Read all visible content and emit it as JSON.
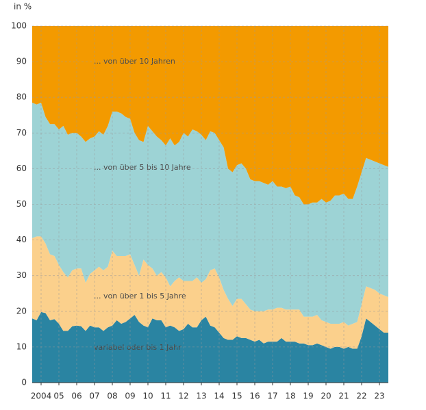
{
  "chart_data": {
    "type": "stacked_area",
    "ylabel": "in %",
    "x": [
      2004,
      2004.25,
      2004.5,
      2004.75,
      2005,
      2005.25,
      2005.5,
      2005.75,
      2006,
      2006.25,
      2006.5,
      2006.75,
      2007,
      2007.25,
      2007.5,
      2007.75,
      2008,
      2008.25,
      2008.5,
      2008.75,
      2009,
      2009.25,
      2009.5,
      2009.75,
      2010,
      2010.25,
      2010.5,
      2010.75,
      2011,
      2011.25,
      2011.5,
      2011.75,
      2012,
      2012.25,
      2012.5,
      2012.75,
      2013,
      2013.25,
      2013.5,
      2013.75,
      2014,
      2014.25,
      2014.5,
      2014.75,
      2015,
      2015.25,
      2015.5,
      2015.75,
      2016,
      2016.25,
      2016.5,
      2016.75,
      2017,
      2017.25,
      2017.5,
      2017.75,
      2018,
      2018.25,
      2018.5,
      2018.75,
      2019,
      2019.25,
      2019.5,
      2019.75,
      2020,
      2020.25,
      2020.5,
      2020.75,
      2021,
      2021.25,
      2021.5,
      2021.75,
      2022,
      2022.25,
      2022.5,
      2022.75,
      2023,
      2023.25,
      2023.5,
      2023.75,
      2024
    ],
    "series": [
      {
        "name": "variabel oder bis 1 Jahr",
        "color": "#2a84a2",
        "values": [
          18,
          17.5,
          19.8,
          19.5,
          17.5,
          17.8,
          16.5,
          14.5,
          14.5,
          15.8,
          16,
          15.8,
          14.5,
          16,
          15.5,
          15.5,
          14.5,
          15.5,
          16,
          17.5,
          16.5,
          17,
          18,
          19,
          17,
          16,
          15.5,
          18,
          17.5,
          17.5,
          15.5,
          16,
          15.5,
          14.5,
          15,
          16.5,
          15.5,
          15.5,
          17.5,
          18.5,
          16,
          15.5,
          14,
          12.5,
          12,
          12,
          13,
          12.5,
          12.5,
          12,
          11.5,
          12,
          11,
          11.5,
          11.5,
          11.5,
          12.5,
          11.5,
          11.5,
          11.5,
          11,
          11,
          10.5,
          10.5,
          11,
          10.5,
          10,
          9.5,
          10,
          10,
          9.5,
          10,
          9.5,
          9.5,
          13,
          18,
          17,
          16,
          15,
          14,
          14
        ]
      },
      {
        "name": "... von über 1 bis 5 Jahre",
        "color": "#fbd08c",
        "values": [
          22.5,
          23.5,
          21.2,
          19.5,
          18.5,
          17.7,
          16.5,
          16.5,
          15,
          15.7,
          16,
          16.2,
          13.5,
          14.5,
          16,
          17,
          17,
          17,
          21,
          18,
          19,
          18.5,
          18,
          14,
          13,
          18.5,
          17.5,
          14,
          12.5,
          13.5,
          14,
          11,
          13,
          15,
          13.5,
          12,
          13,
          14,
          10.5,
          10.5,
          15.5,
          16.5,
          15.5,
          13.5,
          11.5,
          9.5,
          10.5,
          11,
          9.5,
          8.5,
          8.5,
          8,
          9,
          9,
          9,
          9.5,
          8.5,
          9,
          9,
          9,
          9.5,
          7.5,
          8,
          8,
          8,
          7,
          7,
          7,
          6.5,
          6.5,
          7.5,
          6,
          7,
          7.5,
          9,
          9,
          9.5,
          10,
          10,
          10.5,
          10
        ]
      },
      {
        "name": "... von über 5 bis 10 Jahre",
        "color": "#9dd3d5",
        "values": [
          38,
          37,
          37.5,
          35.5,
          36.5,
          37,
          38,
          41,
          40,
          38.5,
          38,
          37,
          39.5,
          38,
          37.5,
          38,
          38,
          39.5,
          39,
          40.5,
          40,
          39,
          38,
          37,
          38,
          33,
          39,
          38.5,
          39,
          37,
          37,
          41.5,
          38,
          38,
          41.5,
          40.5,
          42.5,
          41,
          41.5,
          39,
          39,
          38,
          38.5,
          40,
          36.5,
          37.5,
          37.5,
          38,
          38,
          36.5,
          36.5,
          36.5,
          36,
          35,
          36,
          34,
          34,
          34,
          34.5,
          32,
          31.5,
          31.5,
          31.5,
          32,
          31.5,
          34,
          33.5,
          34.5,
          36,
          36,
          36,
          35.5,
          35,
          38,
          37,
          36,
          36,
          36,
          36.5,
          36.5,
          36.5
        ]
      },
      {
        "name": "... von über 10 Jahren",
        "color": "#f39a00",
        "values": [
          21.5,
          22,
          21.5,
          25.5,
          27.5,
          27.5,
          29,
          28,
          30.5,
          30,
          30,
          31,
          32.5,
          31.5,
          31,
          29.5,
          30.5,
          28,
          24,
          24,
          24.5,
          25.5,
          26,
          30,
          32,
          32.5,
          28,
          29.5,
          31,
          32,
          33.5,
          31.5,
          33.5,
          32.5,
          30,
          31,
          29,
          29.5,
          30.5,
          32,
          29.5,
          30,
          32,
          34,
          40,
          41,
          39,
          38.5,
          40,
          43,
          43.5,
          43.5,
          44,
          44.5,
          43.5,
          45,
          45,
          45.5,
          45,
          47.5,
          48,
          50,
          50,
          49.5,
          49.5,
          48.5,
          49.5,
          49,
          47.5,
          47.5,
          47,
          48.5,
          48.5,
          45,
          41,
          37,
          37.5,
          38,
          38.5,
          39,
          39.5
        ]
      }
    ],
    "xlim": [
      2004,
      2024
    ],
    "xticks": [
      {
        "value": 2004.5,
        "label": "2004"
      },
      {
        "value": 2005.5,
        "label": "05"
      },
      {
        "value": 2006.5,
        "label": "06"
      },
      {
        "value": 2007.5,
        "label": "07"
      },
      {
        "value": 2008.5,
        "label": "08"
      },
      {
        "value": 2009.5,
        "label": "09"
      },
      {
        "value": 2010.5,
        "label": "10"
      },
      {
        "value": 2011.5,
        "label": "11"
      },
      {
        "value": 2012.5,
        "label": "12"
      },
      {
        "value": 2013.5,
        "label": "13"
      },
      {
        "value": 2014.5,
        "label": "14"
      },
      {
        "value": 2015.5,
        "label": "15"
      },
      {
        "value": 2016.5,
        "label": "16"
      },
      {
        "value": 2017.5,
        "label": "17"
      },
      {
        "value": 2018.5,
        "label": "18"
      },
      {
        "value": 2019.5,
        "label": "19"
      },
      {
        "value": 2020.5,
        "label": "20"
      },
      {
        "value": 2021.5,
        "label": "21"
      },
      {
        "value": 2022.5,
        "label": "22"
      },
      {
        "value": 2023.5,
        "label": "23"
      }
    ],
    "ylim": [
      0,
      100
    ],
    "yticks": [
      0,
      10,
      20,
      30,
      40,
      50,
      60,
      70,
      80,
      90,
      100
    ],
    "grid": true
  }
}
